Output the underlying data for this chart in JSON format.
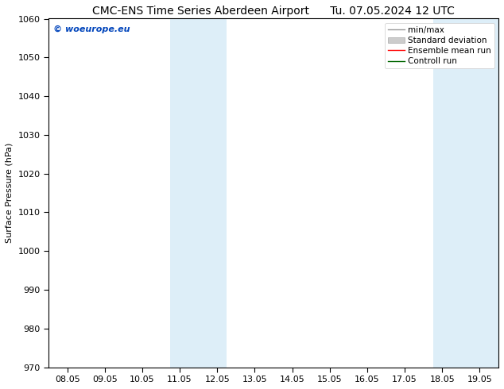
{
  "title_left": "CMC-ENS Time Series Aberdeen Airport",
  "title_right": "Tu. 07.05.2024 12 UTC",
  "ylabel": "Surface Pressure (hPa)",
  "ylim": [
    970,
    1060
  ],
  "yticks": [
    970,
    980,
    990,
    1000,
    1010,
    1020,
    1030,
    1040,
    1050,
    1060
  ],
  "xtick_labels": [
    "08.05",
    "09.05",
    "10.05",
    "11.05",
    "12.05",
    "13.05",
    "14.05",
    "15.05",
    "16.05",
    "17.05",
    "18.05",
    "19.05"
  ],
  "xtick_positions": [
    0,
    1,
    2,
    3,
    4,
    5,
    6,
    7,
    8,
    9,
    10,
    11
  ],
  "xlim": [
    -0.5,
    11.5
  ],
  "shaded_bands": [
    {
      "x_start": 2.75,
      "x_end": 4.25,
      "color": "#ddeef8"
    },
    {
      "x_start": 9.75,
      "x_end": 11.5,
      "color": "#ddeef8"
    }
  ],
  "watermark": "© woeurope.eu",
  "watermark_color": "#0044bb",
  "legend_entries": [
    {
      "label": "min/max",
      "color": "#999999",
      "type": "line"
    },
    {
      "label": "Standard deviation",
      "color": "#cccccc",
      "type": "patch"
    },
    {
      "label": "Ensemble mean run",
      "color": "#ff0000",
      "type": "line"
    },
    {
      "label": "Controll run",
      "color": "#006600",
      "type": "line"
    }
  ],
  "background_color": "#ffffff",
  "spine_color": "#000000",
  "title_fontsize": 10,
  "tick_fontsize": 8,
  "ylabel_fontsize": 8,
  "legend_fontsize": 7.5,
  "watermark_fontsize": 8
}
